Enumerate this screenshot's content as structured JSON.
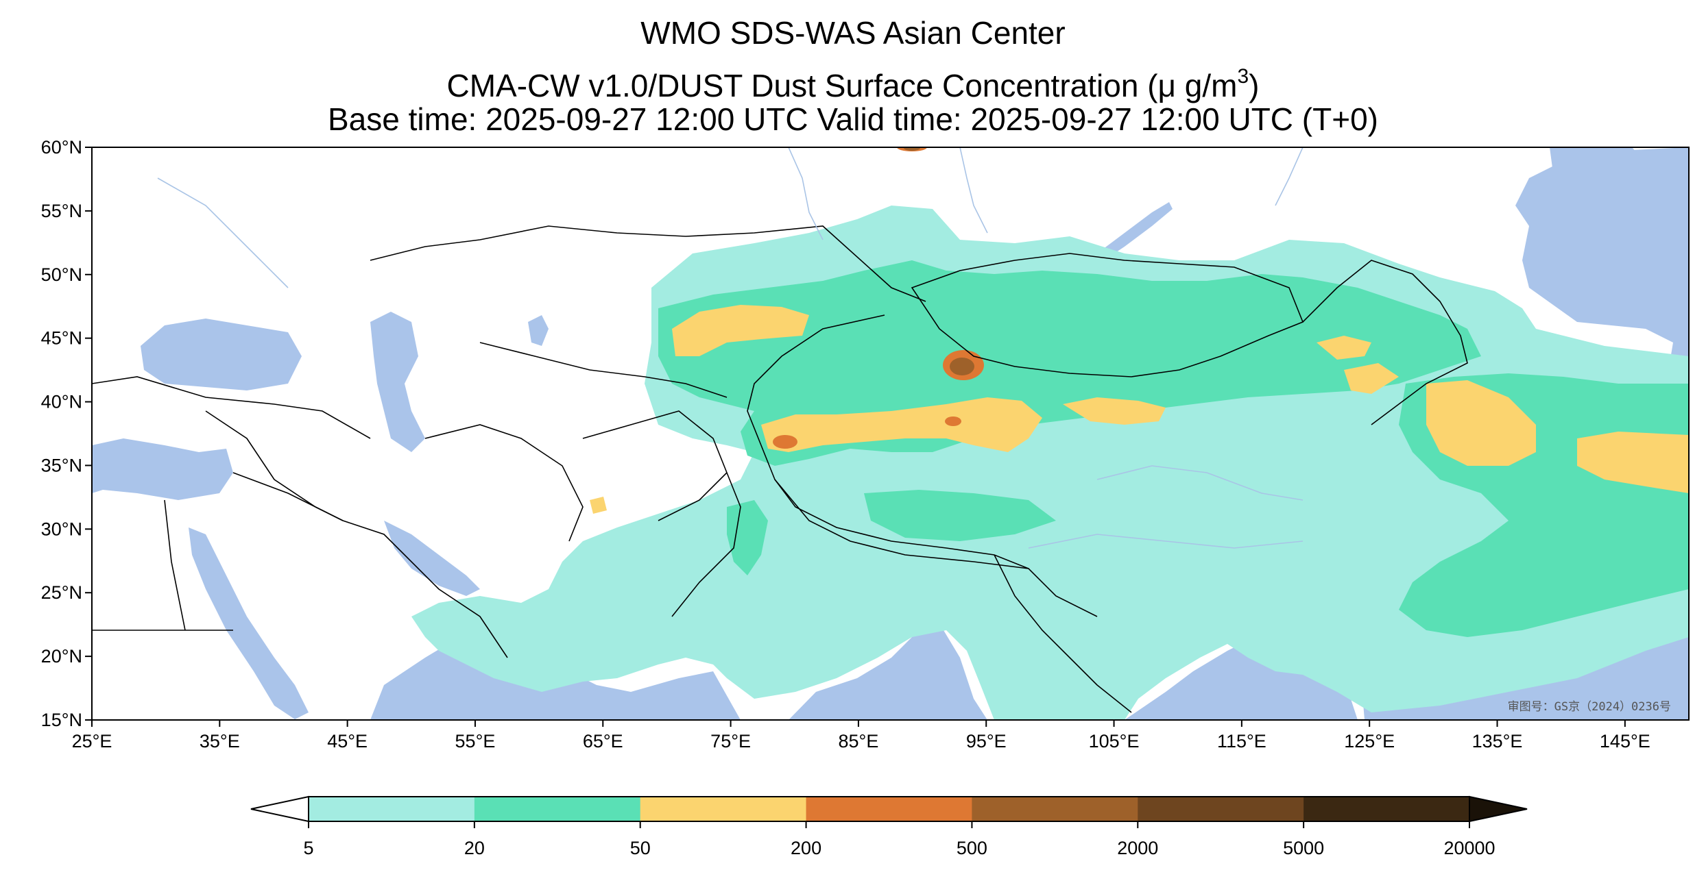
{
  "title": {
    "line1": "WMO SDS-WAS Asian Center",
    "line2_prefix": "CMA-CW v1.0/DUST Dust Surface Concentration (",
    "line2_unit": "μ g/m",
    "line2_sup": "3",
    "line2_suffix": ")",
    "line3": "Base time: 2025-09-27 12:00 UTC Valid time: 2025-09-27 12:00 UTC (T+0)"
  },
  "map": {
    "lat_ticks": [
      "60°N",
      "55°N",
      "50°N",
      "45°N",
      "40°N",
      "35°N",
      "30°N",
      "25°N",
      "20°N",
      "15°N"
    ],
    "lon_ticks": [
      "25°E",
      "35°E",
      "45°E",
      "55°E",
      "65°E",
      "75°E",
      "85°E",
      "95°E",
      "105°E",
      "115°E",
      "125°E",
      "135°E",
      "145°E"
    ],
    "lat_range": [
      15,
      60
    ],
    "lon_range": [
      25,
      150
    ],
    "stamp_text": "审图号：GS京（2024）0236号",
    "colors": {
      "water": "#aac4ea",
      "land": "#ffffff",
      "border": "#000000",
      "river": "#a9c4e6"
    }
  },
  "colorbar": {
    "ticks": [
      "5",
      "20",
      "50",
      "200",
      "500",
      "2000",
      "5000",
      "20000"
    ],
    "colors": [
      "#a3ece1",
      "#5ae0b5",
      "#fbd46f",
      "#de7833",
      "#9e612a",
      "#6e451f",
      "#3b2812"
    ],
    "under_color": "#ffffff",
    "over_color": "#1a1208"
  }
}
